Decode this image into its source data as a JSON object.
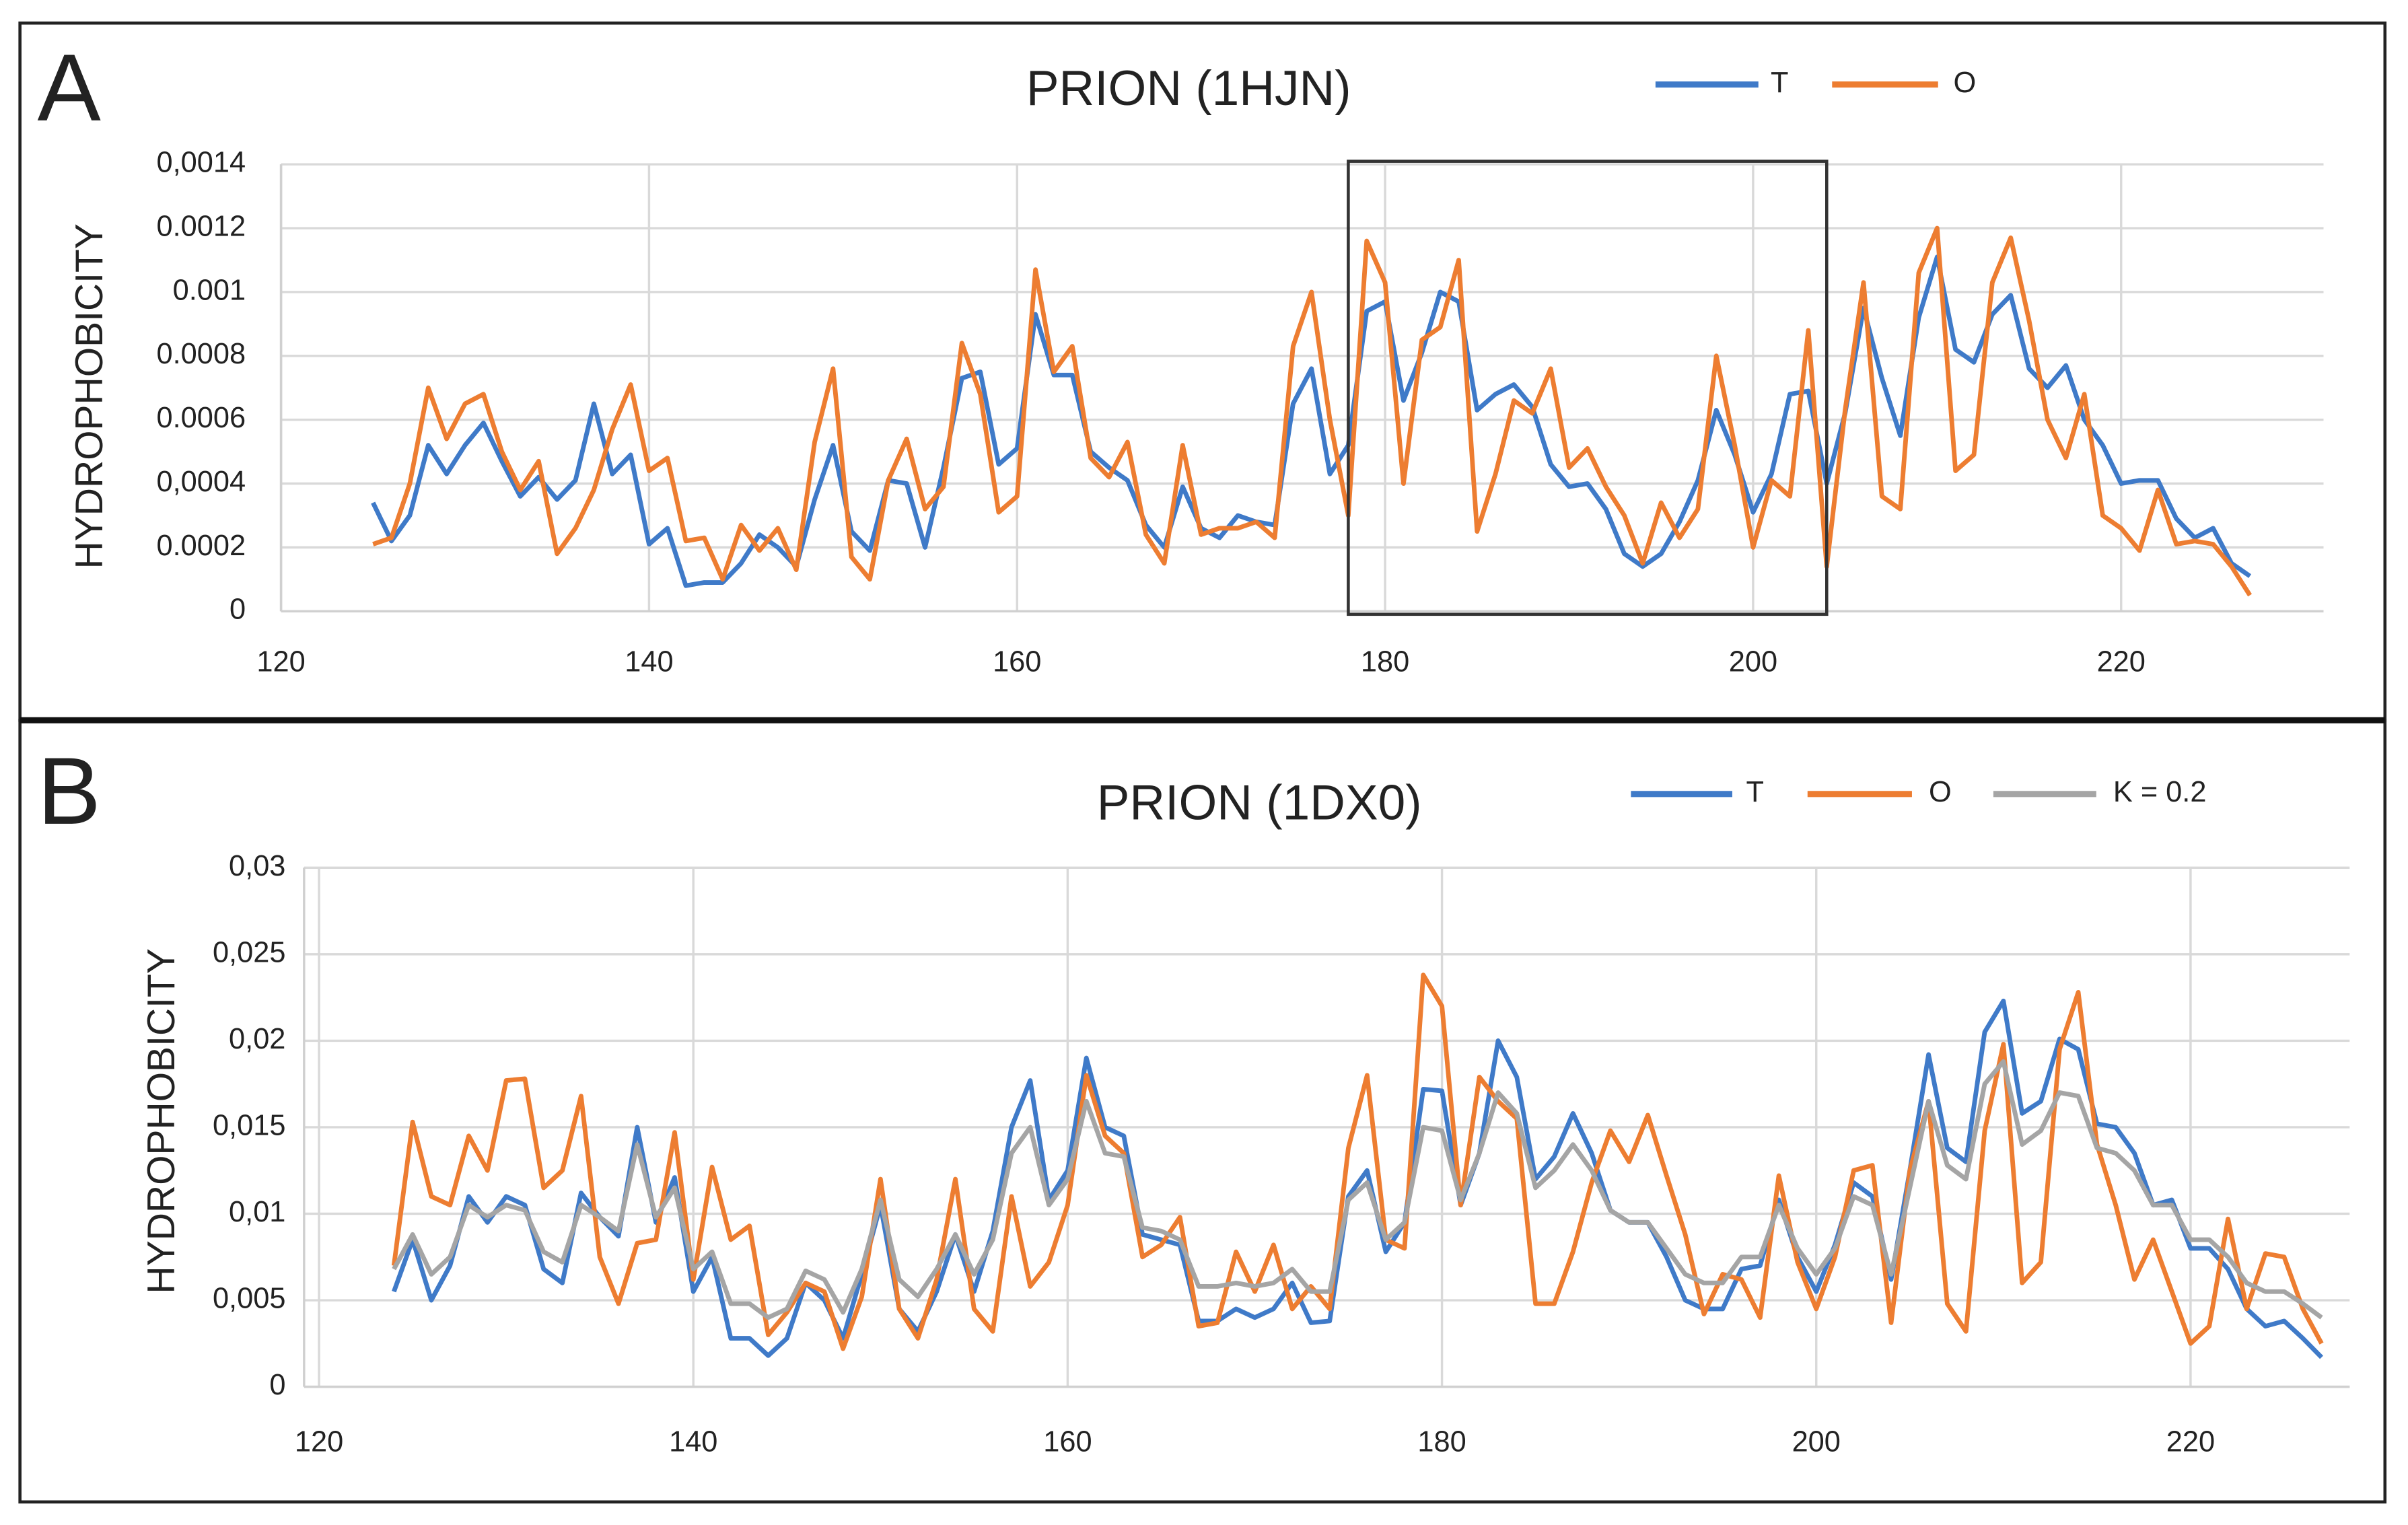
{
  "chart_data": [
    {
      "type": "line",
      "panel_label": "A",
      "title": "PRION (1HJN)",
      "y_label": "HYDROPHOBICITY",
      "grid": true,
      "xlim": [
        120,
        231
      ],
      "ylim": [
        0,
        0.0014
      ],
      "xticks": [
        120,
        140,
        160,
        180,
        200,
        220
      ],
      "yticks": [
        0,
        0.0002,
        {
          "value": 0.0004,
          "label": "0,0004"
        },
        0.0006,
        0.0008,
        0.001,
        0.0012,
        {
          "value": 0.0014,
          "label": "0,0014"
        }
      ],
      "highlight_x": [
        178,
        204
      ],
      "x": [
        125,
        126,
        127,
        128,
        129,
        130,
        131,
        132,
        133,
        134,
        135,
        136,
        137,
        138,
        139,
        140,
        141,
        142,
        143,
        144,
        145,
        146,
        147,
        148,
        149,
        150,
        151,
        152,
        153,
        154,
        155,
        156,
        157,
        158,
        159,
        160,
        161,
        162,
        163,
        164,
        165,
        166,
        167,
        168,
        169,
        170,
        171,
        172,
        173,
        174,
        175,
        176,
        177,
        178,
        179,
        180,
        181,
        182,
        183,
        184,
        185,
        186,
        187,
        188,
        189,
        190,
        191,
        192,
        193,
        194,
        195,
        196,
        197,
        198,
        199,
        200,
        201,
        202,
        203,
        204,
        205,
        206,
        207,
        208,
        209,
        210,
        211,
        212,
        213,
        214,
        215,
        216,
        217,
        218,
        219,
        220,
        221,
        222,
        223,
        224,
        225,
        226,
        227
      ],
      "series": [
        {
          "name": "T",
          "color": "#3f7ac8",
          "values": [
            0.00034,
            0.00022,
            0.0003,
            0.00052,
            0.00043,
            0.00052,
            0.00059,
            0.00047,
            0.00036,
            0.00042,
            0.00035,
            0.00041,
            0.00065,
            0.00043,
            0.00049,
            0.00021,
            0.00026,
            8e-05,
            9e-05,
            9e-05,
            0.00015,
            0.00024,
            0.0002,
            0.00014,
            0.00035,
            0.00052,
            0.00025,
            0.00019,
            0.00041,
            0.0004,
            0.0002,
            0.00045,
            0.00073,
            0.00075,
            0.00046,
            0.00051,
            0.00093,
            0.00074,
            0.00074,
            0.0005,
            0.00045,
            0.00041,
            0.00027,
            0.0002,
            0.00039,
            0.00026,
            0.00023,
            0.0003,
            0.00028,
            0.00027,
            0.00065,
            0.00076,
            0.00043,
            0.00052,
            0.00094,
            0.00097,
            0.00066,
            0.00081,
            0.001,
            0.00097,
            0.00063,
            0.00068,
            0.00071,
            0.00064,
            0.00046,
            0.00039,
            0.0004,
            0.00032,
            0.00018,
            0.00014,
            0.00018,
            0.00028,
            0.00041,
            0.00063,
            0.00049,
            0.00031,
            0.00043,
            0.00068,
            0.00069,
            0.0004,
            0.00062,
            0.00095,
            0.00073,
            0.00055,
            0.00092,
            0.00111,
            0.00082,
            0.00078,
            0.00093,
            0.00099,
            0.00076,
            0.0007,
            0.00077,
            0.0006,
            0.00052,
            0.0004,
            0.00041,
            0.00041,
            0.00029,
            0.00023,
            0.00026,
            0.00015,
            0.00011
          ]
        },
        {
          "name": "O",
          "color": "#ed7d31",
          "values": [
            0.00021,
            0.00023,
            0.0004,
            0.0007,
            0.00054,
            0.00065,
            0.00068,
            0.0005,
            0.00038,
            0.00047,
            0.00018,
            0.00026,
            0.00038,
            0.00057,
            0.00071,
            0.00044,
            0.00048,
            0.00022,
            0.00023,
            0.0001,
            0.00027,
            0.00019,
            0.00026,
            0.00013,
            0.00053,
            0.00076,
            0.00017,
            0.0001,
            0.00041,
            0.00054,
            0.00032,
            0.00039,
            0.00084,
            0.00068,
            0.00031,
            0.00036,
            0.00107,
            0.00075,
            0.00083,
            0.00048,
            0.00042,
            0.00053,
            0.00024,
            0.00015,
            0.00052,
            0.00024,
            0.00026,
            0.00026,
            0.00028,
            0.00023,
            0.00083,
            0.001,
            0.0006,
            0.0003,
            0.00116,
            0.00103,
            0.0004,
            0.00085,
            0.00089,
            0.0011,
            0.00025,
            0.00043,
            0.00066,
            0.00062,
            0.00076,
            0.00045,
            0.00051,
            0.00039,
            0.0003,
            0.00015,
            0.00034,
            0.00023,
            0.00032,
            0.0008,
            0.00052,
            0.0002,
            0.00041,
            0.00036,
            0.00088,
            0.00014,
            0.00063,
            0.00103,
            0.00036,
            0.00032,
            0.00106,
            0.0012,
            0.00044,
            0.00049,
            0.00103,
            0.00117,
            0.00091,
            0.0006,
            0.00048,
            0.00068,
            0.0003,
            0.00026,
            0.00019,
            0.00038,
            0.00021,
            0.00022,
            0.00021,
            0.00014,
            5e-05
          ]
        }
      ]
    },
    {
      "type": "line",
      "panel_label": "B",
      "title": "PRION (1DX0)",
      "y_label": "HYDROPHOBICITY",
      "grid": true,
      "xlim": [
        119.2,
        228.5
      ],
      "ylim": [
        0,
        0.03
      ],
      "xticks": [
        120,
        140,
        160,
        180,
        200,
        220
      ],
      "yticks": [
        0,
        {
          "value": 0.005,
          "label": "0,005"
        },
        {
          "value": 0.01,
          "label": "0,01"
        },
        {
          "value": 0.015,
          "label": "0,015"
        },
        {
          "value": 0.02,
          "label": "0,02"
        },
        {
          "value": 0.025,
          "label": "0,025"
        },
        {
          "value": 0.03,
          "label": "0,03"
        }
      ],
      "x": [
        124,
        125,
        126,
        127,
        128,
        129,
        130,
        131,
        132,
        133,
        134,
        135,
        136,
        137,
        138,
        139,
        140,
        141,
        142,
        143,
        144,
        145,
        146,
        147,
        148,
        149,
        150,
        151,
        152,
        153,
        154,
        155,
        156,
        157,
        158,
        159,
        160,
        161,
        162,
        163,
        164,
        165,
        166,
        167,
        168,
        169,
        170,
        171,
        172,
        173,
        174,
        175,
        176,
        177,
        178,
        179,
        180,
        181,
        182,
        183,
        184,
        185,
        186,
        187,
        188,
        189,
        190,
        191,
        192,
        193,
        194,
        195,
        196,
        197,
        198,
        199,
        200,
        201,
        202,
        203,
        204,
        205,
        206,
        207,
        208,
        209,
        210,
        211,
        212,
        213,
        214,
        215,
        216,
        217,
        218,
        219,
        220,
        221,
        222,
        223,
        224,
        225,
        226,
        227
      ],
      "series": [
        {
          "name": "T",
          "color": "#3f7ac8",
          "values": [
            0.0055,
            0.0085,
            0.005,
            0.007,
            0.011,
            0.0095,
            0.011,
            0.0105,
            0.0068,
            0.006,
            0.0112,
            0.0098,
            0.0087,
            0.015,
            0.0095,
            0.0121,
            0.0055,
            0.0075,
            0.0028,
            0.0028,
            0.0018,
            0.0028,
            0.006,
            0.005,
            0.0028,
            0.0065,
            0.0105,
            0.0045,
            0.0032,
            0.0055,
            0.0088,
            0.0055,
            0.009,
            0.015,
            0.0177,
            0.0108,
            0.0125,
            0.019,
            0.015,
            0.0145,
            0.0088,
            0.0085,
            0.0082,
            0.0038,
            0.0038,
            0.0045,
            0.004,
            0.0045,
            0.006,
            0.0037,
            0.0038,
            0.011,
            0.0125,
            0.0078,
            0.0095,
            0.0172,
            0.0171,
            0.0105,
            0.0135,
            0.02,
            0.0179,
            0.012,
            0.0133,
            0.0158,
            0.0135,
            0.0102,
            0.0095,
            0.0095,
            0.0075,
            0.005,
            0.0045,
            0.0045,
            0.0068,
            0.007,
            0.0108,
            0.0075,
            0.0055,
            0.0082,
            0.0118,
            0.011,
            0.0062,
            0.0125,
            0.0192,
            0.0138,
            0.013,
            0.0205,
            0.0223,
            0.0158,
            0.0165,
            0.0201,
            0.0195,
            0.0152,
            0.015,
            0.0135,
            0.0105,
            0.0108,
            0.008,
            0.008,
            0.0068,
            0.0045,
            0.0035,
            0.0038,
            0.0028,
            0.0017
          ]
        },
        {
          "name": "O",
          "color": "#ed7d31",
          "values": [
            0.007,
            0.0153,
            0.011,
            0.0105,
            0.0145,
            0.0125,
            0.0177,
            0.0178,
            0.0115,
            0.0125,
            0.0168,
            0.0075,
            0.0048,
            0.0083,
            0.0085,
            0.0147,
            0.0062,
            0.0127,
            0.0085,
            0.0093,
            0.003,
            0.0043,
            0.006,
            0.0055,
            0.0022,
            0.0052,
            0.012,
            0.0045,
            0.0028,
            0.0062,
            0.012,
            0.0045,
            0.0032,
            0.011,
            0.0058,
            0.0072,
            0.0105,
            0.018,
            0.0145,
            0.0135,
            0.0075,
            0.0082,
            0.0098,
            0.0035,
            0.0037,
            0.0078,
            0.0055,
            0.0082,
            0.0045,
            0.0058,
            0.0045,
            0.0138,
            0.018,
            0.0085,
            0.008,
            0.0238,
            0.022,
            0.0105,
            0.0179,
            0.0165,
            0.0155,
            0.0048,
            0.0048,
            0.0078,
            0.0118,
            0.0148,
            0.013,
            0.0157,
            0.0122,
            0.0088,
            0.0042,
            0.0065,
            0.0062,
            0.004,
            0.0122,
            0.0072,
            0.0045,
            0.0075,
            0.0125,
            0.0128,
            0.0037,
            0.0125,
            0.0165,
            0.0048,
            0.0032,
            0.0148,
            0.0198,
            0.006,
            0.0072,
            0.0195,
            0.0228,
            0.014,
            0.0105,
            0.0062,
            0.0085,
            0.0055,
            0.0025,
            0.0035,
            0.0097,
            0.0045,
            0.0077,
            0.0075,
            0.0045,
            0.0025
          ]
        },
        {
          "name": "K = 0.2",
          "color": "#a5a5a5",
          "values": [
            0.0068,
            0.0088,
            0.0065,
            0.0075,
            0.0105,
            0.0098,
            0.0105,
            0.0102,
            0.0078,
            0.0072,
            0.0105,
            0.0098,
            0.009,
            0.014,
            0.0098,
            0.0115,
            0.0068,
            0.0078,
            0.0048,
            0.0048,
            0.004,
            0.0045,
            0.0067,
            0.0062,
            0.0043,
            0.0068,
            0.0108,
            0.0062,
            0.0052,
            0.0068,
            0.0088,
            0.0065,
            0.0085,
            0.0135,
            0.015,
            0.0105,
            0.012,
            0.0165,
            0.0135,
            0.0133,
            0.0092,
            0.009,
            0.0085,
            0.0058,
            0.0058,
            0.006,
            0.0058,
            0.006,
            0.0068,
            0.0055,
            0.0055,
            0.0108,
            0.0118,
            0.0085,
            0.0095,
            0.015,
            0.0148,
            0.0108,
            0.0135,
            0.017,
            0.0158,
            0.0115,
            0.0125,
            0.014,
            0.0125,
            0.0102,
            0.0095,
            0.0095,
            0.008,
            0.0065,
            0.006,
            0.006,
            0.0075,
            0.0075,
            0.0105,
            0.008,
            0.0065,
            0.008,
            0.011,
            0.0105,
            0.0065,
            0.0115,
            0.0165,
            0.0128,
            0.012,
            0.0175,
            0.0188,
            0.014,
            0.0148,
            0.017,
            0.0168,
            0.0138,
            0.0135,
            0.0125,
            0.0105,
            0.0105,
            0.0085,
            0.0085,
            0.0075,
            0.006,
            0.0055,
            0.0055,
            0.0048,
            0.004
          ]
        }
      ]
    }
  ]
}
